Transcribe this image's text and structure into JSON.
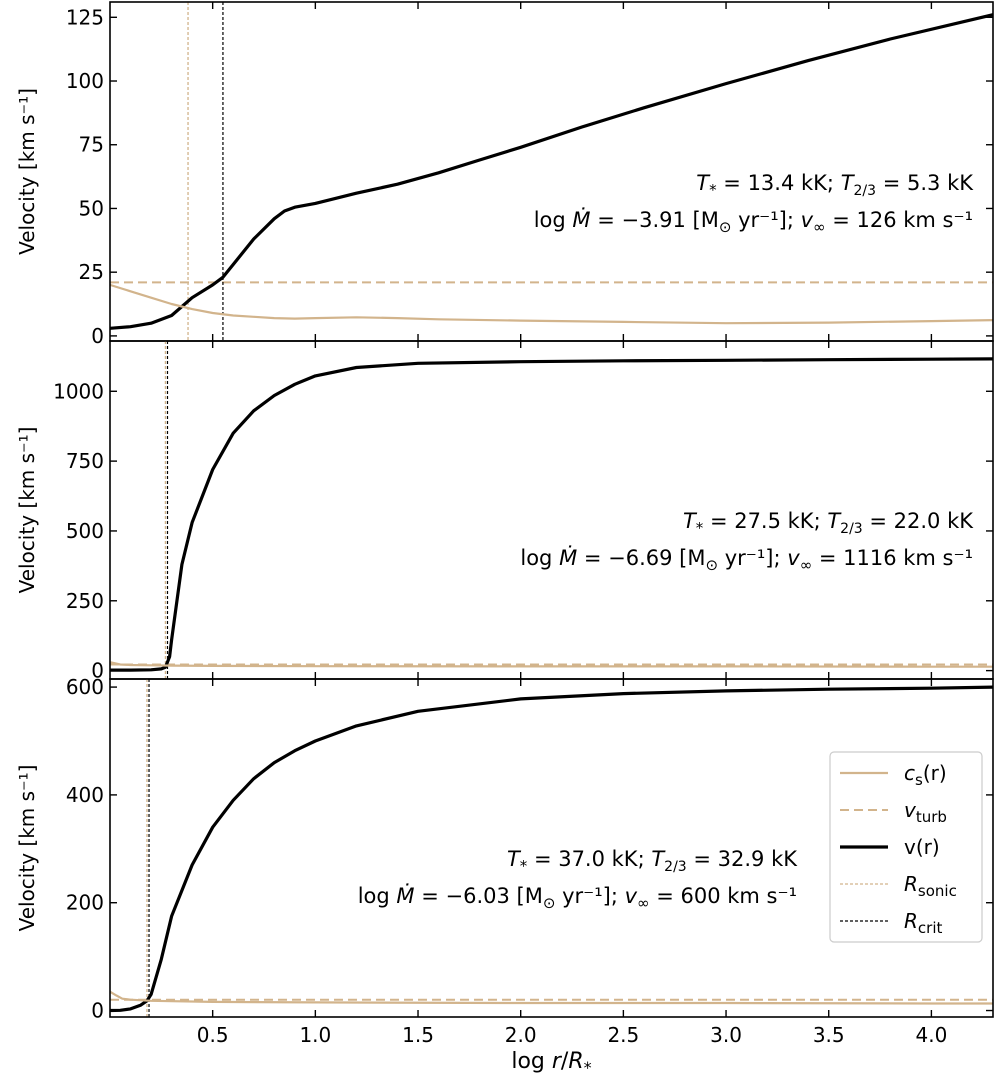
{
  "colors": {
    "cs": "#d2b48c",
    "vturb": "#d2b48c",
    "v": "#000000",
    "rsonic": "#d2b48c",
    "rcrit": "#000000"
  },
  "figure": {
    "xlabel": "log r/R*",
    "xlim": [
      0.0,
      4.3
    ],
    "xticks": [
      0.5,
      1.0,
      1.5,
      2.0,
      2.5,
      3.0,
      3.5,
      4.0
    ],
    "xtick_labels": [
      "0.5",
      "1.0",
      "1.5",
      "2.0",
      "2.5",
      "3.0",
      "3.5",
      "4.0"
    ],
    "legend": {
      "placement": "panel-3 right",
      "entries": [
        {
          "key": "cs",
          "label_main": "c",
          "label_sub": "s",
          "label_tail": "(r)",
          "style": "solid-thin"
        },
        {
          "key": "vturb",
          "label_main": "v",
          "label_sub": "turb",
          "label_tail": "",
          "style": "dashed"
        },
        {
          "key": "v",
          "label_main": "v(r)",
          "label_sub": "",
          "label_tail": "",
          "style": "solid-thick"
        },
        {
          "key": "rsonic",
          "label_main": "R",
          "label_sub": "sonic",
          "label_tail": "",
          "style": "dotted-thin"
        },
        {
          "key": "rcrit",
          "label_main": "R",
          "label_sub": "crit",
          "label_tail": "",
          "style": "dotted-thin"
        }
      ]
    }
  },
  "chart_data": [
    {
      "type": "line",
      "ylabel": "Velocity [km s⁻¹]",
      "ylim": [
        -2,
        131
      ],
      "yticks": [
        0,
        25,
        50,
        75,
        100,
        125
      ],
      "ytick_labels": [
        "0",
        "25",
        "50",
        "75",
        "100",
        "125"
      ],
      "annotation": {
        "line1": "T* = 13.4 kK; T2/3 = 5.3 kK",
        "line2": "log Ṁ = −3.91 [M⊙ yr⁻¹]; v∞ = 126 km s⁻¹",
        "placement": "right"
      },
      "r_sonic": 0.38,
      "r_crit": 0.55,
      "v_turb": 21,
      "series": [
        {
          "key": "v",
          "x": [
            0.0,
            0.1,
            0.2,
            0.3,
            0.4,
            0.5,
            0.55,
            0.6,
            0.7,
            0.8,
            0.85,
            0.9,
            1.0,
            1.1,
            1.2,
            1.4,
            1.6,
            1.8,
            2.0,
            2.3,
            2.6,
            3.0,
            3.4,
            3.8,
            4.3
          ],
          "y": [
            3,
            3.6,
            5,
            8,
            15,
            20,
            23,
            28,
            38,
            46,
            49,
            50.5,
            52,
            54,
            56,
            59.5,
            64,
            69,
            74,
            82,
            89.5,
            99,
            108,
            116.5,
            126
          ]
        },
        {
          "key": "cs",
          "x": [
            0.0,
            0.1,
            0.2,
            0.3,
            0.4,
            0.5,
            0.6,
            0.7,
            0.8,
            0.9,
            1.0,
            1.2,
            1.4,
            1.6,
            2.0,
            2.5,
            3.0,
            3.5,
            4.0,
            4.3
          ],
          "y": [
            20,
            17.5,
            15,
            12.5,
            10.5,
            9,
            8,
            7.5,
            7,
            6.8,
            7,
            7.3,
            7,
            6.5,
            6,
            5.5,
            5,
            5.2,
            5.8,
            6.2
          ]
        }
      ]
    },
    {
      "type": "line",
      "ylabel": "Velocity [km s⁻¹]",
      "ylim": [
        -30,
        1180
      ],
      "yticks": [
        0,
        250,
        500,
        750,
        1000
      ],
      "ytick_labels": [
        "0",
        "250",
        "500",
        "750",
        "1000"
      ],
      "annotation": {
        "line1": "T* = 27.5 kK; T2/3 = 22.0 kK",
        "line2": "log Ṁ = −6.69 [M⊙ yr⁻¹]; v∞ = 1116 km s⁻¹",
        "placement": "right"
      },
      "r_sonic": 0.27,
      "r_crit": 0.28,
      "v_turb": 22,
      "series": [
        {
          "key": "v",
          "x": [
            0.0,
            0.1,
            0.2,
            0.25,
            0.27,
            0.29,
            0.3,
            0.35,
            0.4,
            0.5,
            0.6,
            0.7,
            0.8,
            0.9,
            1.0,
            1.2,
            1.5,
            2.0,
            2.5,
            3.0,
            3.5,
            4.0,
            4.3
          ],
          "y": [
            2,
            2,
            3,
            6,
            12,
            50,
            110,
            380,
            530,
            720,
            850,
            930,
            985,
            1025,
            1055,
            1085,
            1100,
            1106,
            1109,
            1111,
            1113,
            1115,
            1116
          ]
        },
        {
          "key": "cs",
          "x": [
            0.0,
            0.05,
            0.1,
            0.2,
            0.3,
            0.5,
            1.0,
            2.0,
            3.0,
            4.0,
            4.3
          ],
          "y": [
            30,
            22,
            20,
            19,
            18,
            17,
            16,
            15,
            15,
            14,
            14
          ]
        }
      ]
    },
    {
      "type": "line",
      "ylabel": "Velocity [km s⁻¹]",
      "ylim": [
        -12,
        615
      ],
      "yticks": [
        0,
        200,
        400,
        600
      ],
      "ytick_labels": [
        "0",
        "200",
        "400",
        "600"
      ],
      "annotation": {
        "line1": "T* = 37.0 kK; T2/3 = 32.9 kK",
        "line2": "log Ṁ = −6.03 [M⊙ yr⁻¹]; v∞ = 600 km s⁻¹",
        "placement": "right"
      },
      "r_sonic": 0.18,
      "r_crit": 0.19,
      "v_turb": 20,
      "series": [
        {
          "key": "v",
          "x": [
            0.0,
            0.05,
            0.1,
            0.15,
            0.18,
            0.2,
            0.25,
            0.3,
            0.4,
            0.5,
            0.6,
            0.7,
            0.8,
            0.9,
            1.0,
            1.2,
            1.5,
            2.0,
            2.5,
            3.0,
            3.5,
            4.0,
            4.3
          ],
          "y": [
            0,
            0.5,
            3,
            10,
            18,
            30,
            95,
            175,
            270,
            340,
            390,
            430,
            460,
            482,
            500,
            528,
            555,
            578,
            588,
            593,
            596,
            598,
            600
          ]
        },
        {
          "key": "cs",
          "x": [
            0.0,
            0.03,
            0.06,
            0.1,
            0.2,
            0.5,
            1.0,
            2.0,
            3.0,
            4.0,
            4.3
          ],
          "y": [
            35,
            28,
            22,
            20,
            18,
            16,
            15,
            14,
            14,
            13,
            13
          ]
        }
      ]
    }
  ]
}
